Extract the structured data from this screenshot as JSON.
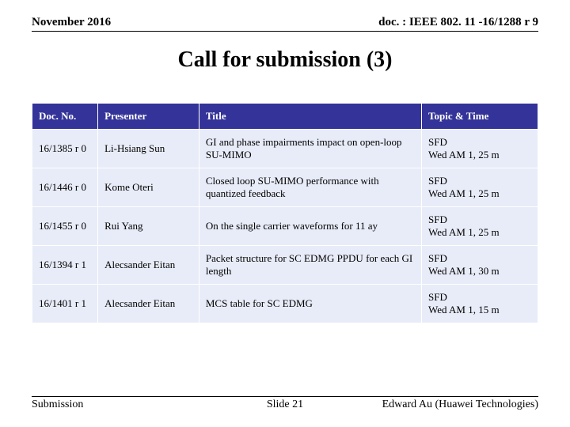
{
  "header": {
    "left": "November 2016",
    "right": "doc. : IEEE 802. 11 -16/1288 r 9"
  },
  "title": "Call for submission (3)",
  "table": {
    "header_bg": "#333399",
    "header_fg": "#ffffff",
    "cell_bg": "#e8ecf8",
    "columns": [
      "Doc. No.",
      "Presenter",
      "Title",
      "Topic & Time"
    ],
    "rows": [
      [
        "16/1385 r 0",
        "Li-Hsiang Sun",
        "GI and phase impairments impact on open-loop SU-MIMO",
        "SFD\nWed AM 1, 25 m"
      ],
      [
        "16/1446 r 0",
        "Kome Oteri",
        "Closed loop SU-MIMO performance with quantized feedback",
        "SFD\nWed AM 1, 25 m"
      ],
      [
        "16/1455 r 0",
        "Rui Yang",
        "On the single carrier waveforms for 11 ay",
        "SFD\nWed AM 1, 25 m"
      ],
      [
        "16/1394 r 1",
        "Alecsander Eitan",
        "Packet structure for SC EDMG PPDU for each GI length",
        "SFD\nWed AM 1, 30 m"
      ],
      [
        "16/1401 r 1",
        "Alecsander Eitan",
        "MCS table for SC EDMG",
        "SFD\nWed AM 1, 15 m"
      ]
    ]
  },
  "footer": {
    "left": "Submission",
    "center": "Slide 21",
    "right": "Edward Au (Huawei Technologies)"
  }
}
